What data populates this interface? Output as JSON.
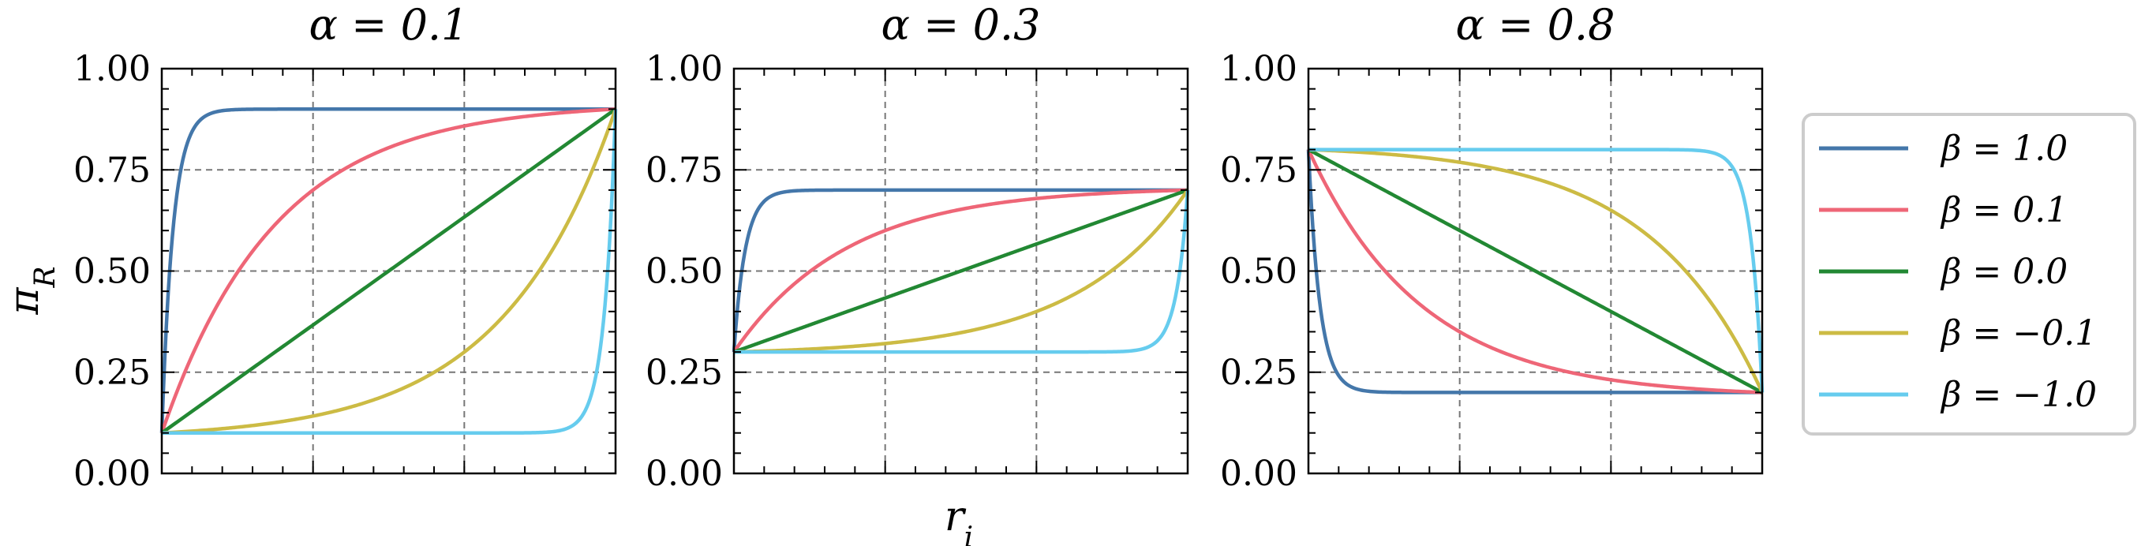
{
  "chart_data": {
    "type": "line",
    "ylabel": "πR",
    "xlabel": "ri",
    "ylim": [
      0,
      1
    ],
    "yticks": [
      "0.00",
      "0.25",
      "0.50",
      "0.75",
      "1.00"
    ],
    "xlim": [
      0,
      1
    ],
    "grid": true,
    "legend": {
      "placement": "right",
      "entries": [
        "β = 1.0",
        "β = 0.1",
        "β = 0.0",
        "β = −0.1",
        "β = −1.0"
      ]
    },
    "series_style": [
      {
        "beta": 1.0,
        "color": "#4477aa"
      },
      {
        "beta": 0.1,
        "color": "#ee6677"
      },
      {
        "beta": 0.0,
        "color": "#228833"
      },
      {
        "beta": -0.1,
        "color": "#ccbb44"
      },
      {
        "beta": -1.0,
        "color": "#66ccee"
      }
    ],
    "panels": [
      {
        "title": "α = 0.1",
        "alpha": 0.1,
        "start": 0.1,
        "end": 0.9
      },
      {
        "title": "α = 0.3",
        "alpha": 0.3,
        "start": 0.3,
        "end": 0.7
      },
      {
        "title": "α = 0.8",
        "alpha": 0.8,
        "start": 0.8,
        "end": 0.2
      }
    ]
  }
}
